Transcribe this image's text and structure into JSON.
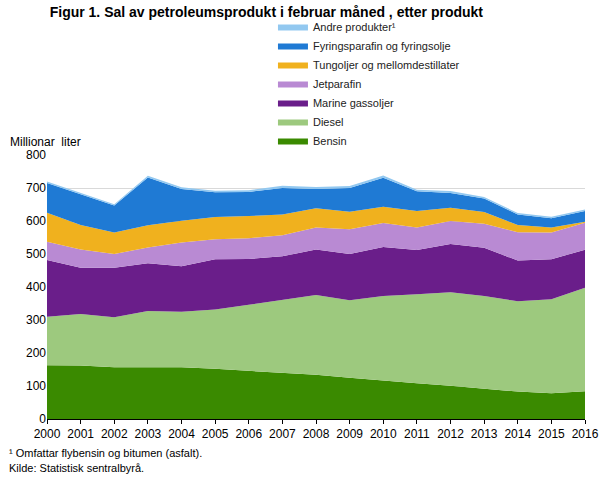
{
  "chart_data": {
    "type": "area",
    "stacked": true,
    "title": "Figur 1. Sal av petroleumsprodukt i februar måned , etter produkt",
    "y_label": "Millionar  liter",
    "footnote": "¹ Omfattar flybensin og bitumen (asfalt).",
    "source": "Kilde: Statistisk sentralbyrå.",
    "x": [
      2000,
      2001,
      2002,
      2003,
      2004,
      2005,
      2006,
      2007,
      2008,
      2009,
      2010,
      2011,
      2012,
      2013,
      2014,
      2015,
      2016
    ],
    "xlim": [
      2000,
      2016
    ],
    "xticks": [
      2000,
      2001,
      2002,
      2003,
      2004,
      2005,
      2006,
      2007,
      2008,
      2009,
      2010,
      2011,
      2012,
      2013,
      2014,
      2015,
      2016
    ],
    "ylim": [
      0,
      800
    ],
    "yticks": [
      0,
      100,
      200,
      300,
      400,
      500,
      600,
      700,
      800
    ],
    "grid": true,
    "legend": "top",
    "series": [
      {
        "name": "Bensin",
        "color": "#3a8a00",
        "values": [
          163,
          162,
          157,
          158,
          157,
          152,
          146,
          139,
          134,
          125,
          116,
          108,
          101,
          92,
          83,
          78,
          84
        ]
      },
      {
        "name": "Diesel",
        "color": "#9dc97e",
        "values": [
          147,
          156,
          151,
          169,
          168,
          180,
          200,
          223,
          242,
          235,
          257,
          270,
          283,
          281,
          274,
          285,
          314
        ]
      },
      {
        "name": "Marine gassoljer",
        "color": "#6a1e8a",
        "values": [
          172,
          140,
          150,
          145,
          138,
          152,
          139,
          131,
          138,
          140,
          148,
          134,
          146,
          146,
          123,
          121,
          115
        ]
      },
      {
        "name": "Jetparafin",
        "color": "#b98ad3",
        "values": [
          55,
          56,
          42,
          48,
          72,
          61,
          63,
          64,
          66,
          75,
          73,
          68,
          70,
          73,
          86,
          81,
          82
        ]
      },
      {
        "name": "Tungoljer og mellomdestillater",
        "color": "#f0b11e",
        "values": [
          88,
          74,
          65,
          67,
          66,
          67,
          67,
          63,
          59,
          53,
          49,
          50,
          40,
          35,
          22,
          15,
          3
        ]
      },
      {
        "name": "Fyringsparafin og fyringsolje",
        "color": "#1f7ad4",
        "values": [
          90,
          92,
          82,
          145,
          96,
          75,
          73,
          80,
          58,
          72,
          88,
          60,
          45,
          41,
          32,
          28,
          32
        ]
      },
      {
        "name": "Andre produkter¹",
        "color": "#92c8f0",
        "values": [
          5,
          6,
          4,
          5,
          5,
          5,
          5,
          7,
          6,
          6,
          7,
          5,
          6,
          5,
          4,
          5,
          5
        ]
      }
    ]
  }
}
